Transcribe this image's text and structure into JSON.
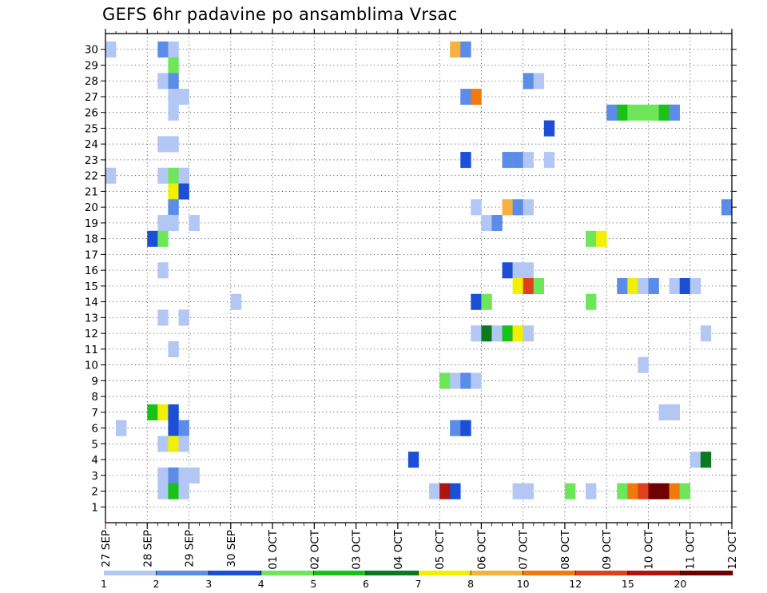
{
  "chart_data": {
    "type": "heatmap",
    "title": "GEFS 6hr padavine po ansamblima Vrsac",
    "xlabel": "",
    "ylabel": "",
    "x_tick_labels": [
      "27 SEP",
      "28 SEP",
      "29 SEP",
      "30 SEP",
      "01 OCT",
      "02 OCT",
      "03 OCT",
      "04 OCT",
      "05 OCT",
      "06 OCT",
      "07 OCT",
      "08 OCT",
      "09 OCT",
      "10 OCT",
      "11 OCT",
      "12 OCT"
    ],
    "x_unit": "6-hour step",
    "x_range_steps": [
      0,
      60
    ],
    "y_tick_labels": [
      "1",
      "2",
      "3",
      "4",
      "5",
      "6",
      "7",
      "8",
      "9",
      "10",
      "11",
      "12",
      "13",
      "14",
      "15",
      "16",
      "17",
      "18",
      "19",
      "20",
      "21",
      "22",
      "23",
      "24",
      "25",
      "26",
      "27",
      "28",
      "29",
      "30"
    ],
    "y_range": [
      1,
      30
    ],
    "levels": [
      1,
      2,
      3,
      4,
      5,
      6,
      7,
      8,
      10,
      12,
      15,
      20
    ],
    "legend_labels": [
      "1",
      "2",
      "3",
      "4",
      "5",
      "6",
      "7",
      "8",
      "10",
      "12",
      "15",
      "20"
    ],
    "level_colors": [
      "#b3c7f5",
      "#5a8ce8",
      "#1a4fd6",
      "#6ee65a",
      "#19c219",
      "#0a7a1e",
      "#f0f000",
      "#f6b23e",
      "#f07a0c",
      "#e0401a",
      "#b0140e",
      "#6e0000"
    ],
    "cells": [
      {
        "member": 30,
        "step": 0,
        "level": 0
      },
      {
        "member": 30,
        "step": 5,
        "level": 1
      },
      {
        "member": 30,
        "step": 6,
        "level": 0
      },
      {
        "member": 30,
        "step": 33,
        "level": 7
      },
      {
        "member": 30,
        "step": 34,
        "level": 1
      },
      {
        "member": 29,
        "step": 6,
        "level": 3
      },
      {
        "member": 28,
        "step": 5,
        "level": 0
      },
      {
        "member": 28,
        "step": 6,
        "level": 1
      },
      {
        "member": 28,
        "step": 40,
        "level": 1
      },
      {
        "member": 28,
        "step": 41,
        "level": 0
      },
      {
        "member": 27,
        "step": 6,
        "level": 0
      },
      {
        "member": 27,
        "step": 7,
        "level": 0
      },
      {
        "member": 27,
        "step": 34,
        "level": 1
      },
      {
        "member": 27,
        "step": 35,
        "level": 8
      },
      {
        "member": 26,
        "step": 6,
        "level": 0
      },
      {
        "member": 26,
        "step": 48,
        "level": 1
      },
      {
        "member": 26,
        "step": 49,
        "level": 4
      },
      {
        "member": 26,
        "step": 50,
        "level": 3
      },
      {
        "member": 26,
        "step": 51,
        "level": 3
      },
      {
        "member": 26,
        "step": 52,
        "level": 3
      },
      {
        "member": 26,
        "step": 53,
        "level": 4
      },
      {
        "member": 26,
        "step": 54,
        "level": 1
      },
      {
        "member": 25,
        "step": 42,
        "level": 2
      },
      {
        "member": 24,
        "step": 5,
        "level": 0
      },
      {
        "member": 24,
        "step": 6,
        "level": 0
      },
      {
        "member": 23,
        "step": 34,
        "level": 2
      },
      {
        "member": 23,
        "step": 38,
        "level": 1
      },
      {
        "member": 23,
        "step": 39,
        "level": 1
      },
      {
        "member": 23,
        "step": 40,
        "level": 0
      },
      {
        "member": 23,
        "step": 42,
        "level": 0
      },
      {
        "member": 22,
        "step": 0,
        "level": 0
      },
      {
        "member": 22,
        "step": 5,
        "level": 0
      },
      {
        "member": 22,
        "step": 6,
        "level": 3
      },
      {
        "member": 22,
        "step": 7,
        "level": 0
      },
      {
        "member": 21,
        "step": 6,
        "level": 6
      },
      {
        "member": 21,
        "step": 7,
        "level": 2
      },
      {
        "member": 20,
        "step": 6,
        "level": 1
      },
      {
        "member": 20,
        "step": 35,
        "level": 0
      },
      {
        "member": 20,
        "step": 38,
        "level": 7
      },
      {
        "member": 20,
        "step": 39,
        "level": 1
      },
      {
        "member": 20,
        "step": 40,
        "level": 0
      },
      {
        "member": 20,
        "step": 59,
        "level": 1
      },
      {
        "member": 19,
        "step": 5,
        "level": 0
      },
      {
        "member": 19,
        "step": 6,
        "level": 0
      },
      {
        "member": 19,
        "step": 8,
        "level": 0
      },
      {
        "member": 19,
        "step": 36,
        "level": 0
      },
      {
        "member": 19,
        "step": 37,
        "level": 1
      },
      {
        "member": 18,
        "step": 4,
        "level": 2
      },
      {
        "member": 18,
        "step": 5,
        "level": 3
      },
      {
        "member": 18,
        "step": 46,
        "level": 3
      },
      {
        "member": 18,
        "step": 47,
        "level": 6
      },
      {
        "member": 16,
        "step": 5,
        "level": 0
      },
      {
        "member": 16,
        "step": 38,
        "level": 2
      },
      {
        "member": 16,
        "step": 39,
        "level": 0
      },
      {
        "member": 16,
        "step": 40,
        "level": 0
      },
      {
        "member": 15,
        "step": 39,
        "level": 6
      },
      {
        "member": 15,
        "step": 40,
        "level": 9
      },
      {
        "member": 15,
        "step": 41,
        "level": 3
      },
      {
        "member": 15,
        "step": 49,
        "level": 1
      },
      {
        "member": 15,
        "step": 50,
        "level": 6
      },
      {
        "member": 15,
        "step": 51,
        "level": 0
      },
      {
        "member": 15,
        "step": 52,
        "level": 1
      },
      {
        "member": 15,
        "step": 54,
        "level": 0
      },
      {
        "member": 15,
        "step": 55,
        "level": 2
      },
      {
        "member": 15,
        "step": 56,
        "level": 0
      },
      {
        "member": 14,
        "step": 12,
        "level": 0
      },
      {
        "member": 14,
        "step": 35,
        "level": 2
      },
      {
        "member": 14,
        "step": 36,
        "level": 3
      },
      {
        "member": 14,
        "step": 46,
        "level": 3
      },
      {
        "member": 13,
        "step": 5,
        "level": 0
      },
      {
        "member": 13,
        "step": 7,
        "level": 0
      },
      {
        "member": 12,
        "step": 35,
        "level": 0
      },
      {
        "member": 12,
        "step": 36,
        "level": 5
      },
      {
        "member": 12,
        "step": 37,
        "level": 0
      },
      {
        "member": 12,
        "step": 38,
        "level": 4
      },
      {
        "member": 12,
        "step": 39,
        "level": 6
      },
      {
        "member": 12,
        "step": 40,
        "level": 0
      },
      {
        "member": 12,
        "step": 57,
        "level": 0
      },
      {
        "member": 11,
        "step": 6,
        "level": 0
      },
      {
        "member": 10,
        "step": 51,
        "level": 0
      },
      {
        "member": 9,
        "step": 32,
        "level": 3
      },
      {
        "member": 9,
        "step": 33,
        "level": 0
      },
      {
        "member": 9,
        "step": 34,
        "level": 1
      },
      {
        "member": 9,
        "step": 35,
        "level": 0
      },
      {
        "member": 7,
        "step": 4,
        "level": 4
      },
      {
        "member": 7,
        "step": 5,
        "level": 6
      },
      {
        "member": 7,
        "step": 6,
        "level": 2
      },
      {
        "member": 7,
        "step": 53,
        "level": 0
      },
      {
        "member": 7,
        "step": 54,
        "level": 0
      },
      {
        "member": 6,
        "step": 1,
        "level": 0
      },
      {
        "member": 6,
        "step": 6,
        "level": 2
      },
      {
        "member": 6,
        "step": 7,
        "level": 1
      },
      {
        "member": 6,
        "step": 33,
        "level": 1
      },
      {
        "member": 6,
        "step": 34,
        "level": 2
      },
      {
        "member": 5,
        "step": 5,
        "level": 0
      },
      {
        "member": 5,
        "step": 6,
        "level": 6
      },
      {
        "member": 5,
        "step": 7,
        "level": 0
      },
      {
        "member": 4,
        "step": 29,
        "level": 2
      },
      {
        "member": 4,
        "step": 56,
        "level": 0
      },
      {
        "member": 4,
        "step": 57,
        "level": 5
      },
      {
        "member": 3,
        "step": 5,
        "level": 0
      },
      {
        "member": 3,
        "step": 6,
        "level": 1
      },
      {
        "member": 3,
        "step": 7,
        "level": 0
      },
      {
        "member": 3,
        "step": 8,
        "level": 0
      },
      {
        "member": 2,
        "step": 5,
        "level": 0
      },
      {
        "member": 2,
        "step": 6,
        "level": 4
      },
      {
        "member": 2,
        "step": 7,
        "level": 0
      },
      {
        "member": 2,
        "step": 31,
        "level": 0
      },
      {
        "member": 2,
        "step": 32,
        "level": 10
      },
      {
        "member": 2,
        "step": 33,
        "level": 2
      },
      {
        "member": 2,
        "step": 39,
        "level": 0
      },
      {
        "member": 2,
        "step": 40,
        "level": 0
      },
      {
        "member": 2,
        "step": 44,
        "level": 3
      },
      {
        "member": 2,
        "step": 46,
        "level": 0
      },
      {
        "member": 2,
        "step": 49,
        "level": 3
      },
      {
        "member": 2,
        "step": 50,
        "level": 8
      },
      {
        "member": 2,
        "step": 51,
        "level": 9
      },
      {
        "member": 2,
        "step": 52,
        "level": 11
      },
      {
        "member": 2,
        "step": 53,
        "level": 11
      },
      {
        "member": 2,
        "step": 54,
        "level": 8
      },
      {
        "member": 2,
        "step": 55,
        "level": 3
      }
    ]
  }
}
